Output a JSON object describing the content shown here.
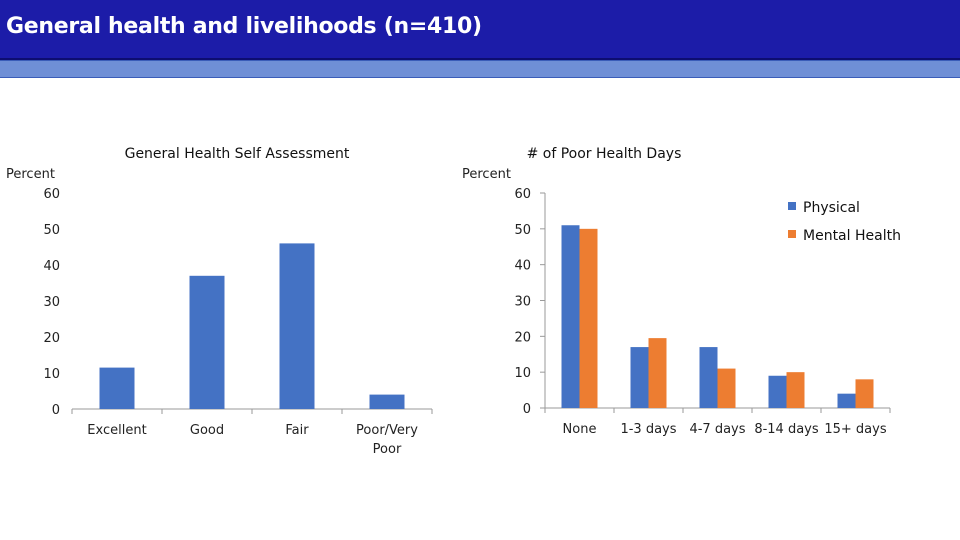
{
  "page": {
    "title": "General health and livelihoods (n=410)"
  },
  "colors": {
    "bar_blue": "#4472c4",
    "bar_orange": "#ed7d31",
    "axis": "#9a9a9a"
  },
  "chart_data": [
    {
      "type": "bar",
      "title": "General Health Self Assessment",
      "ylabel": "Percent",
      "categories": [
        "Excellent",
        "Good",
        "Fair",
        "Poor/Very Poor"
      ],
      "values": [
        11.5,
        37,
        46,
        4
      ],
      "ylim": [
        0,
        60
      ],
      "yticks": [
        "0",
        "10",
        "20",
        "30",
        "40",
        "50",
        "60"
      ],
      "grid": false
    },
    {
      "type": "bar",
      "title": "# of Poor Health Days",
      "ylabel": "Percent",
      "categories": [
        "None",
        "1-3 days",
        "4-7 days",
        "8-14 days",
        "15+ days"
      ],
      "series": [
        {
          "name": "Physical",
          "values": [
            51,
            17,
            17,
            9,
            4
          ],
          "color": "#4472c4"
        },
        {
          "name": "Mental Health",
          "values": [
            50,
            19.5,
            11,
            10,
            8
          ],
          "color": "#ed7d31"
        }
      ],
      "ylim": [
        0,
        60
      ],
      "yticks": [
        "0",
        "10",
        "20",
        "30",
        "40",
        "50",
        "60"
      ],
      "legend": "top-right",
      "grid": false
    }
  ]
}
